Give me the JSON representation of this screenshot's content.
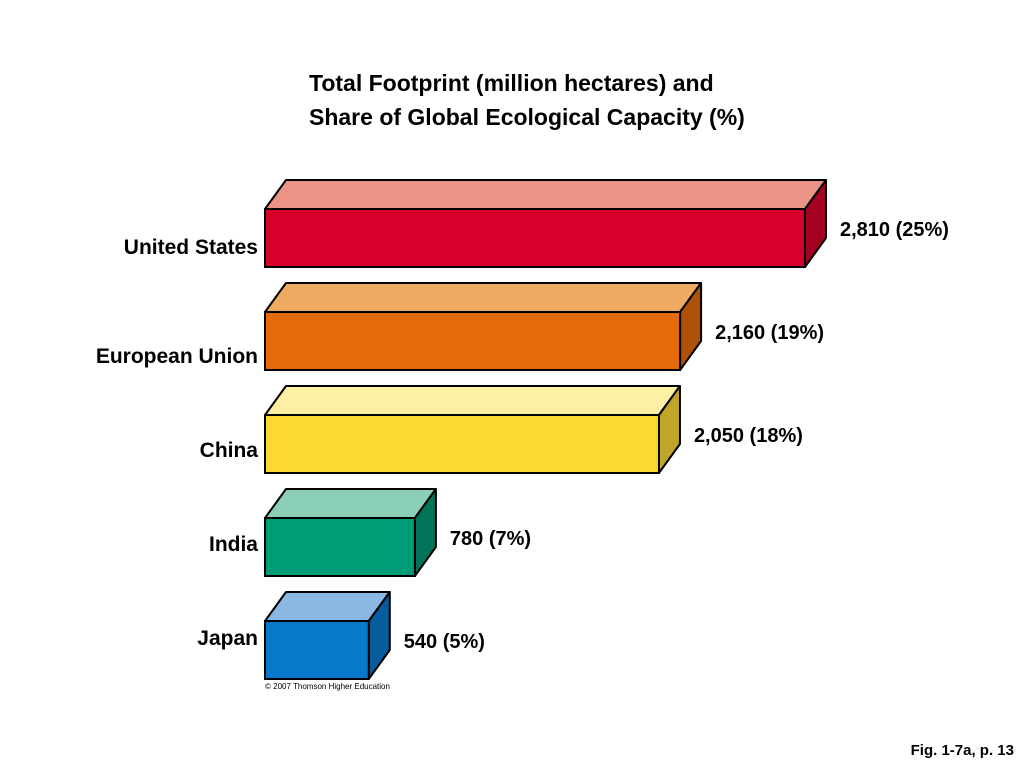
{
  "chart_data": {
    "type": "bar",
    "orientation": "horizontal",
    "title_lines": [
      "Total Footprint (million hectares) and",
      "Share of Global Ecological Capacity (%)"
    ],
    "categories": [
      "United States",
      "European Union",
      "China",
      "India",
      "Japan"
    ],
    "values": [
      2810,
      2160,
      2050,
      780,
      540
    ],
    "shares_percent": [
      25,
      19,
      18,
      7,
      5
    ],
    "value_labels": [
      "2,810 (25%)",
      "2,160 (19%)",
      "2,050 (18%)",
      "780 (7%)",
      "540 (5%)"
    ],
    "colors": [
      {
        "front": "#d6002a",
        "top": "#eb9486",
        "side": "#a5001f"
      },
      {
        "front": "#e46a0a",
        "top": "#f0ab62",
        "side": "#ad5208"
      },
      {
        "front": "#fbd92e",
        "top": "#fdefa4",
        "side": "#c1a42a"
      },
      {
        "front": "#009b77",
        "top": "#8ccfb8",
        "side": "#007358"
      },
      {
        "front": "#0679cb",
        "top": "#8bb7e3",
        "side": "#055b9b"
      }
    ],
    "grid": false,
    "legend": "none"
  },
  "copyright": "© 2007 Thomson Higher Education",
  "figure_ref": "Fig. 1-7a, p. 13"
}
